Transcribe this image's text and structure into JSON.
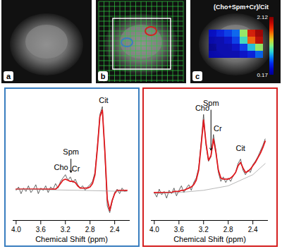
{
  "images": [
    {
      "label": "a"
    },
    {
      "label": "b"
    },
    {
      "label": "c",
      "title": "(Cho+Spm+Cr)/Cit",
      "colorbar": {
        "range": [
          0.17,
          2.12
        ],
        "ticks": [
          0.17,
          2.12
        ]
      },
      "cells": [
        [
          0.4,
          0.5,
          0.6,
          0.7,
          1.2,
          1.8,
          2.0
        ],
        [
          0.3,
          0.3,
          0.4,
          0.6,
          1.0,
          1.6,
          1.9
        ],
        [
          0.2,
          0.3,
          0.3,
          0.4,
          0.6,
          0.9,
          1.2
        ],
        [
          0.3,
          0.3,
          0.3,
          0.3,
          0.4,
          0.5,
          0.7
        ]
      ]
    }
  ],
  "chart_data": [
    {
      "type": "line",
      "color": "#3a7ebf",
      "x_label": "Chemical Shift (ppm)",
      "tick_labels": "x",
      "xlim": [
        4.05,
        2.15
      ],
      "ylim": [
        -5,
        105
      ],
      "xticks": [
        {
          "value": 4,
          "label": "4.0"
        },
        3.6,
        3.2,
        2.8,
        2.4
      ],
      "x": [
        4.0,
        3.96,
        3.92,
        3.88,
        3.84,
        3.8,
        3.76,
        3.72,
        3.68,
        3.64,
        3.6,
        3.56,
        3.52,
        3.48,
        3.44,
        3.4,
        3.36,
        3.32,
        3.28,
        3.24,
        3.2,
        3.16,
        3.12,
        3.08,
        3.04,
        3.0,
        2.96,
        2.92,
        2.88,
        2.84,
        2.8,
        2.76,
        2.72,
        2.68,
        2.64,
        2.6,
        2.56,
        2.52,
        2.48,
        2.44,
        2.4,
        2.36,
        2.32,
        2.28,
        2.24,
        2.2
      ],
      "series": [
        {
          "color": "#222222",
          "line_style": "thin",
          "values": [
            22,
            25,
            19,
            24,
            21,
            26,
            20,
            23,
            27,
            19,
            24,
            22,
            26,
            20,
            25,
            23,
            28,
            24,
            30,
            33,
            36,
            31,
            34,
            29,
            32,
            27,
            24,
            26,
            22,
            25,
            27,
            30,
            38,
            62,
            90,
            97,
            55,
            8,
            2,
            12,
            20,
            23,
            19,
            24,
            21,
            22
          ]
        },
        {
          "color": "#e0191e",
          "line_style": "thick",
          "values": [
            23,
            23,
            23,
            23,
            23,
            23,
            23,
            23,
            23,
            23,
            23,
            23,
            23,
            23,
            23,
            23,
            23,
            25,
            28,
            31,
            32,
            31,
            30,
            30,
            29,
            26,
            24,
            24,
            24,
            24,
            25,
            28,
            36,
            60,
            88,
            94,
            58,
            14,
            4,
            13,
            19,
            22,
            22,
            22,
            22,
            22
          ]
        },
        {
          "color": "#999999",
          "line_style": "thin",
          "x": [
            4.0,
            3.0,
            2.2
          ],
          "values": [
            23,
            22,
            21
          ]
        }
      ],
      "annotations": [
        {
          "text": "Cho",
          "x": 3.27,
          "y": 41
        },
        {
          "text": "Spm",
          "x": 3.11,
          "y": 55,
          "arrow_to": 38
        },
        {
          "text": "Cr",
          "x": 3.03,
          "y": 40
        },
        {
          "text": "Cit",
          "x": 2.58,
          "y": 101
        }
      ]
    },
    {
      "type": "line",
      "color": "#d42020",
      "x_label": "Chemical Shift (ppm)",
      "tick_labels": "x",
      "xlim": [
        4.05,
        2.15
      ],
      "ylim": [
        -5,
        105
      ],
      "xticks": [
        {
          "value": 4,
          "label": "4.0"
        },
        3.6,
        3.2,
        2.8,
        2.4
      ],
      "x": [
        4.0,
        3.96,
        3.92,
        3.88,
        3.84,
        3.8,
        3.76,
        3.72,
        3.68,
        3.64,
        3.6,
        3.56,
        3.52,
        3.48,
        3.44,
        3.4,
        3.36,
        3.32,
        3.28,
        3.24,
        3.2,
        3.16,
        3.12,
        3.08,
        3.04,
        3.0,
        2.96,
        2.92,
        2.88,
        2.84,
        2.8,
        2.76,
        2.72,
        2.68,
        2.64,
        2.6,
        2.56,
        2.52,
        2.48,
        2.44,
        2.4,
        2.36,
        2.32,
        2.28,
        2.24,
        2.2
      ],
      "series": [
        {
          "color": "#222222",
          "line_style": "thin",
          "values": [
            20,
            16,
            23,
            18,
            21,
            15,
            22,
            19,
            24,
            17,
            22,
            26,
            20,
            24,
            27,
            22,
            29,
            33,
            42,
            65,
            90,
            62,
            48,
            52,
            72,
            58,
            38,
            30,
            34,
            29,
            33,
            30,
            35,
            38,
            46,
            50,
            40,
            36,
            40,
            38,
            45,
            48,
            52,
            57,
            62,
            68
          ]
        },
        {
          "color": "#e0191e",
          "line_style": "thick",
          "values": [
            20,
            20,
            20,
            20,
            20,
            20,
            20,
            20,
            21,
            21,
            21,
            22,
            22,
            23,
            24,
            25,
            27,
            31,
            40,
            62,
            85,
            64,
            49,
            53,
            68,
            56,
            40,
            33,
            32,
            32,
            32,
            33,
            35,
            38,
            44,
            47,
            42,
            38,
            39,
            41,
            44,
            47,
            51,
            55,
            60,
            66
          ]
        },
        {
          "color": "#999999",
          "line_style": "thin",
          "x": [
            4.0,
            3.6,
            3.2,
            2.8,
            2.4,
            2.2
          ],
          "values": [
            19,
            20,
            22,
            26,
            36,
            46
          ]
        }
      ],
      "annotations": [
        {
          "text": "Cho",
          "x": 3.22,
          "y": 94
        },
        {
          "text": "Spm",
          "x": 3.08,
          "y": 99,
          "arrow_to": 58
        },
        {
          "text": "Cr",
          "x": 2.97,
          "y": 76
        },
        {
          "text": "Cit",
          "x": 2.6,
          "y": 58
        }
      ]
    }
  ]
}
